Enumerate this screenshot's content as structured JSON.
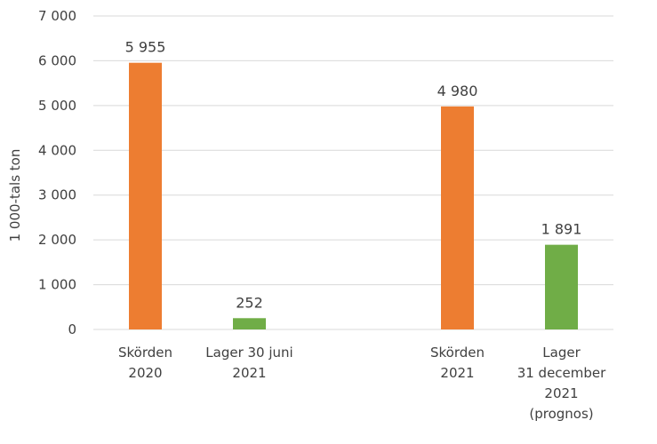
{
  "chart_data": {
    "type": "bar",
    "ylabel": "1 000-tals ton",
    "ylim": [
      0,
      7000
    ],
    "yticks": [
      0,
      1000,
      2000,
      3000,
      4000,
      5000,
      6000,
      7000
    ],
    "ytick_labels": [
      "0",
      "1 000",
      "2 000",
      "3 000",
      "4 000",
      "5 000",
      "6 000",
      "7 000"
    ],
    "grid": true,
    "categories": [
      [
        "Skörden",
        "2020"
      ],
      [
        "Lager 30 juni",
        "2021"
      ],
      [],
      [
        "Skörden",
        "2021"
      ],
      [
        "Lager",
        "31 december",
        "2021",
        "(prognos)"
      ]
    ],
    "values": [
      5955,
      252,
      null,
      4980,
      1891
    ],
    "data_labels": [
      "5 955",
      "252",
      "",
      "4 980",
      "1 891"
    ],
    "colors": [
      "#ED7D31",
      "#70AD47",
      "",
      "#ED7D31",
      "#70AD47"
    ]
  }
}
